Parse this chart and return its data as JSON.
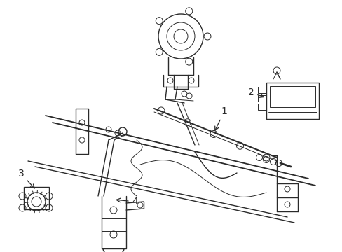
{
  "bg_color": "#ffffff",
  "line_color": "#2a2a2a",
  "lw": 1.0,
  "tlw": 0.7,
  "fig_width": 4.89,
  "fig_height": 3.6,
  "dpi": 100
}
